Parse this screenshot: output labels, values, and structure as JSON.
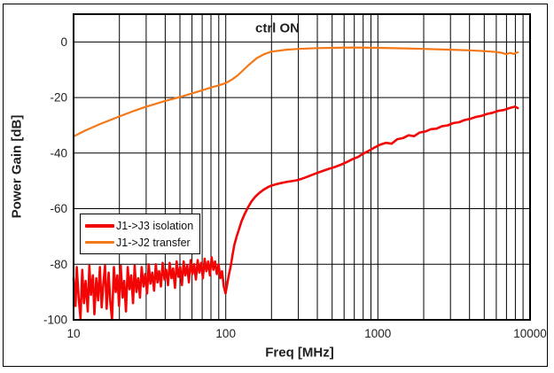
{
  "figure": {
    "title": "ctrl ON",
    "x_axis": {
      "label": "Freq [MHz]"
    },
    "y_axis": {
      "label": "Power Gain [dB]"
    },
    "legend": {
      "entries": [
        {
          "label": "J1->J3 isolation"
        },
        {
          "label": "J1->J2 transfer"
        }
      ]
    }
  },
  "chart_data": {
    "type": "line",
    "title": "ctrl ON",
    "xlabel": "Freq [MHz]",
    "ylabel": "Power Gain [dB]",
    "x_scale": "log",
    "xlim": [
      10,
      10000
    ],
    "ylim": [
      -100,
      10
    ],
    "x_tick_values": [
      10,
      100,
      1000,
      10000
    ],
    "x_tick_labels": [
      "10",
      "100",
      "1000",
      "10000"
    ],
    "y_tick_values": [
      0,
      -20,
      -40,
      -60,
      -80,
      -100
    ],
    "y_tick_labels": [
      "0",
      "-20",
      "-40",
      "-60",
      "-80",
      "-100"
    ],
    "grid": true,
    "grid_color": "#000000",
    "frame_color": "#000000",
    "legend_position": "left-middle",
    "series": [
      {
        "name": "J1->J3 isolation",
        "color": "#f20505",
        "width": 2.6,
        "points": [
          [
            10.0,
            -85
          ],
          [
            10.3,
            -95
          ],
          [
            10.5,
            -81
          ],
          [
            10.8,
            -92
          ],
          [
            11.1,
            -99.5
          ],
          [
            11.4,
            -82
          ],
          [
            11.7,
            -94
          ],
          [
            12.0,
            -86
          ],
          [
            12.4,
            -97
          ],
          [
            12.7,
            -80.5
          ],
          [
            13.0,
            -91
          ],
          [
            13.4,
            -84
          ],
          [
            13.7,
            -98
          ],
          [
            14.1,
            -85
          ],
          [
            14.5,
            -93
          ],
          [
            14.9,
            -81
          ],
          [
            15.3,
            -95.5
          ],
          [
            15.7,
            -87
          ],
          [
            16.1,
            -80.5
          ],
          [
            16.5,
            -96
          ],
          [
            17.0,
            -83
          ],
          [
            17.4,
            -93
          ],
          [
            17.9,
            -100
          ],
          [
            18.4,
            -81
          ],
          [
            18.9,
            -90
          ],
          [
            19.4,
            -84
          ],
          [
            19.9,
            -95
          ],
          [
            20.4,
            -80.5
          ],
          [
            21.0,
            -92
          ],
          [
            21.5,
            -86
          ],
          [
            22.1,
            -97
          ],
          [
            22.7,
            -81
          ],
          [
            23.3,
            -89
          ],
          [
            23.9,
            -84
          ],
          [
            24.6,
            -94
          ],
          [
            25.2,
            -80.5
          ],
          [
            25.9,
            -90
          ],
          [
            26.6,
            -85
          ],
          [
            27.3,
            -92
          ],
          [
            28.0,
            -81
          ],
          [
            28.8,
            -88
          ],
          [
            29.6,
            -83.5
          ],
          [
            30.4,
            -90.5
          ],
          [
            31.2,
            -80
          ],
          [
            32.0,
            -87
          ],
          [
            32.9,
            -83
          ],
          [
            33.8,
            -89.5
          ],
          [
            34.7,
            -80
          ],
          [
            35.6,
            -86.5
          ],
          [
            36.5,
            -82.5
          ],
          [
            37.5,
            -88
          ],
          [
            38.5,
            -79.5
          ],
          [
            39.6,
            -85.5
          ],
          [
            40.6,
            -82
          ],
          [
            41.7,
            -87.5
          ],
          [
            42.8,
            -79.5
          ],
          [
            44.0,
            -85
          ],
          [
            45.1,
            -81.5
          ],
          [
            46.4,
            -88.5
          ],
          [
            47.6,
            -79
          ],
          [
            48.9,
            -84.5
          ],
          [
            50.2,
            -81
          ],
          [
            51.5,
            -87.5
          ],
          [
            52.9,
            -79
          ],
          [
            54.3,
            -84
          ],
          [
            55.8,
            -80.5
          ],
          [
            57.3,
            -86.5
          ],
          [
            58.8,
            -78.5
          ],
          [
            60.4,
            -83.5
          ],
          [
            62.0,
            -80
          ],
          [
            63.7,
            -85.5
          ],
          [
            65.4,
            -78.5
          ],
          [
            67.1,
            -83
          ],
          [
            68.9,
            -79.5
          ],
          [
            70.8,
            -85
          ],
          [
            72.7,
            -78
          ],
          [
            74.6,
            -82.5
          ],
          [
            76.6,
            -79
          ],
          [
            78.7,
            -84
          ],
          [
            80.8,
            -77.5
          ],
          [
            82.9,
            -82
          ],
          [
            85.1,
            -79
          ],
          [
            87.4,
            -83.5
          ],
          [
            89.8,
            -80
          ],
          [
            92.2,
            -85
          ],
          [
            94.6,
            -82.5
          ],
          [
            97.2,
            -88
          ],
          [
            99.8,
            -90.5
          ],
          [
            102.4,
            -87
          ],
          [
            105.2,
            -83.5
          ],
          [
            108,
            -80.5
          ],
          [
            111,
            -76.5
          ],
          [
            114,
            -73
          ],
          [
            118,
            -70
          ],
          [
            122,
            -67.5
          ],
          [
            127,
            -64.5
          ],
          [
            133,
            -62
          ],
          [
            140,
            -59.5
          ],
          [
            148,
            -57.3
          ],
          [
            157,
            -55.6
          ],
          [
            167,
            -54.2
          ],
          [
            178,
            -53.1
          ],
          [
            190,
            -52.2
          ],
          [
            200,
            -51.7
          ],
          [
            215,
            -51.2
          ],
          [
            230,
            -50.8
          ],
          [
            250,
            -50.4
          ],
          [
            270,
            -50.1
          ],
          [
            290,
            -49.8
          ],
          [
            310,
            -49.4
          ],
          [
            340,
            -48.6
          ],
          [
            370,
            -47.8
          ],
          [
            400,
            -47.1
          ],
          [
            440,
            -46.3
          ],
          [
            480,
            -45.6
          ],
          [
            520,
            -45.0
          ],
          [
            570,
            -44.2
          ],
          [
            620,
            -43.3
          ],
          [
            680,
            -42.2
          ],
          [
            740,
            -41.4
          ],
          [
            800,
            -40.2
          ],
          [
            870,
            -39.2
          ],
          [
            950,
            -38.0
          ],
          [
            1040,
            -36.9
          ],
          [
            1130,
            -36.3
          ],
          [
            1230,
            -36.6
          ],
          [
            1340,
            -35.0
          ],
          [
            1460,
            -34.6
          ],
          [
            1590,
            -33.6
          ],
          [
            1730,
            -33.9
          ],
          [
            1880,
            -32.6
          ],
          [
            2050,
            -32.2
          ],
          [
            2230,
            -31.4
          ],
          [
            2430,
            -31.2
          ],
          [
            2640,
            -30.3
          ],
          [
            2880,
            -30.0
          ],
          [
            3130,
            -29.2
          ],
          [
            3410,
            -28.9
          ],
          [
            3710,
            -28.1
          ],
          [
            4040,
            -27.7
          ],
          [
            4400,
            -27.0
          ],
          [
            4790,
            -26.6
          ],
          [
            5210,
            -25.9
          ],
          [
            5670,
            -25.5
          ],
          [
            6170,
            -24.8
          ],
          [
            6720,
            -24.5
          ],
          [
            7310,
            -23.8
          ],
          [
            7960,
            -23.3
          ],
          [
            8300,
            -23.8
          ]
        ]
      },
      {
        "name": "J1->J2 transfer",
        "color": "#f57818",
        "width": 2.2,
        "points": [
          [
            10,
            -34
          ],
          [
            12,
            -31.8
          ],
          [
            15,
            -29.5
          ],
          [
            20,
            -26.8
          ],
          [
            25,
            -24.8
          ],
          [
            30,
            -23.3
          ],
          [
            40,
            -21.2
          ],
          [
            50,
            -19.8
          ],
          [
            60,
            -18.5
          ],
          [
            70,
            -17.4
          ],
          [
            80,
            -16.4
          ],
          [
            90,
            -15.6
          ],
          [
            100,
            -14.8
          ],
          [
            110,
            -13.5
          ],
          [
            120,
            -12
          ],
          [
            140,
            -8.5
          ],
          [
            160,
            -5.8
          ],
          [
            180,
            -4.3
          ],
          [
            200,
            -3.5
          ],
          [
            250,
            -2.8
          ],
          [
            300,
            -2.5
          ],
          [
            400,
            -2.2
          ],
          [
            500,
            -2.1
          ],
          [
            700,
            -2.0
          ],
          [
            1000,
            -2.1
          ],
          [
            1500,
            -2.3
          ],
          [
            2000,
            -2.5
          ],
          [
            3000,
            -2.8
          ],
          [
            4000,
            -3.0
          ],
          [
            5000,
            -3.3
          ],
          [
            6000,
            -3.6
          ],
          [
            6500,
            -3.9
          ],
          [
            7000,
            -4.4
          ],
          [
            7400,
            -3.9
          ],
          [
            7800,
            -4.3
          ],
          [
            8300,
            -3.7
          ]
        ]
      }
    ]
  }
}
